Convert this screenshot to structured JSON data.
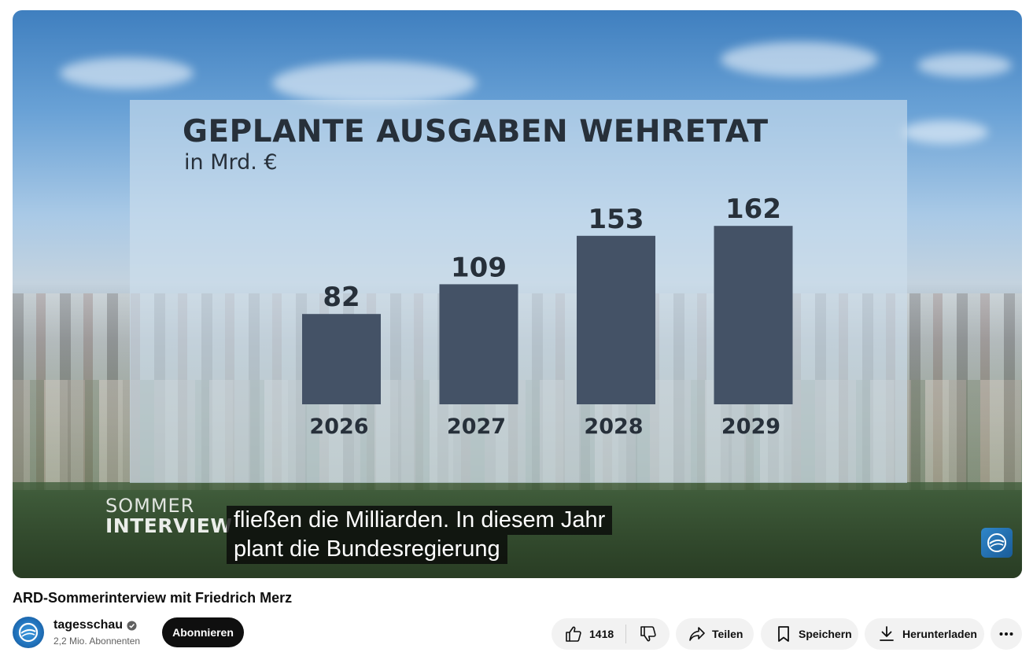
{
  "player": {
    "captions": [
      "fließen die Milliarden. In diesem Jahr",
      "plant die Bundesregierung"
    ],
    "show_logo": {
      "line1": "SOMMER",
      "line2": "INTERVIEW"
    }
  },
  "chart_data": {
    "type": "bar",
    "title": "GEPLANTE AUSGABEN WEHRETAT",
    "subtitle": "in Mrd. €",
    "categories": [
      "2026",
      "2027",
      "2028",
      "2029"
    ],
    "values": [
      82,
      109,
      153,
      162
    ],
    "xlabel": "",
    "ylabel": "",
    "grid": false,
    "bar_color": "#445266",
    "text_color": "#27303a"
  },
  "video": {
    "title": "ARD-Sommerinterview mit Friedrich Merz"
  },
  "channel": {
    "name": "tagesschau",
    "subscribers": "2,2 Mio. Abonnenten",
    "subscribe_label": "Abonnieren"
  },
  "actions": {
    "like_count": "1418",
    "share_label": "Teilen",
    "save_label": "Speichern",
    "download_label": "Herunterladen"
  },
  "icons": {
    "like": "thumbs-up-icon",
    "dislike": "thumbs-down-icon",
    "share": "share-arrow-icon",
    "save": "bookmark-icon",
    "download": "download-icon",
    "more": "more-horizontal-icon",
    "verified": "verified-check-icon"
  }
}
